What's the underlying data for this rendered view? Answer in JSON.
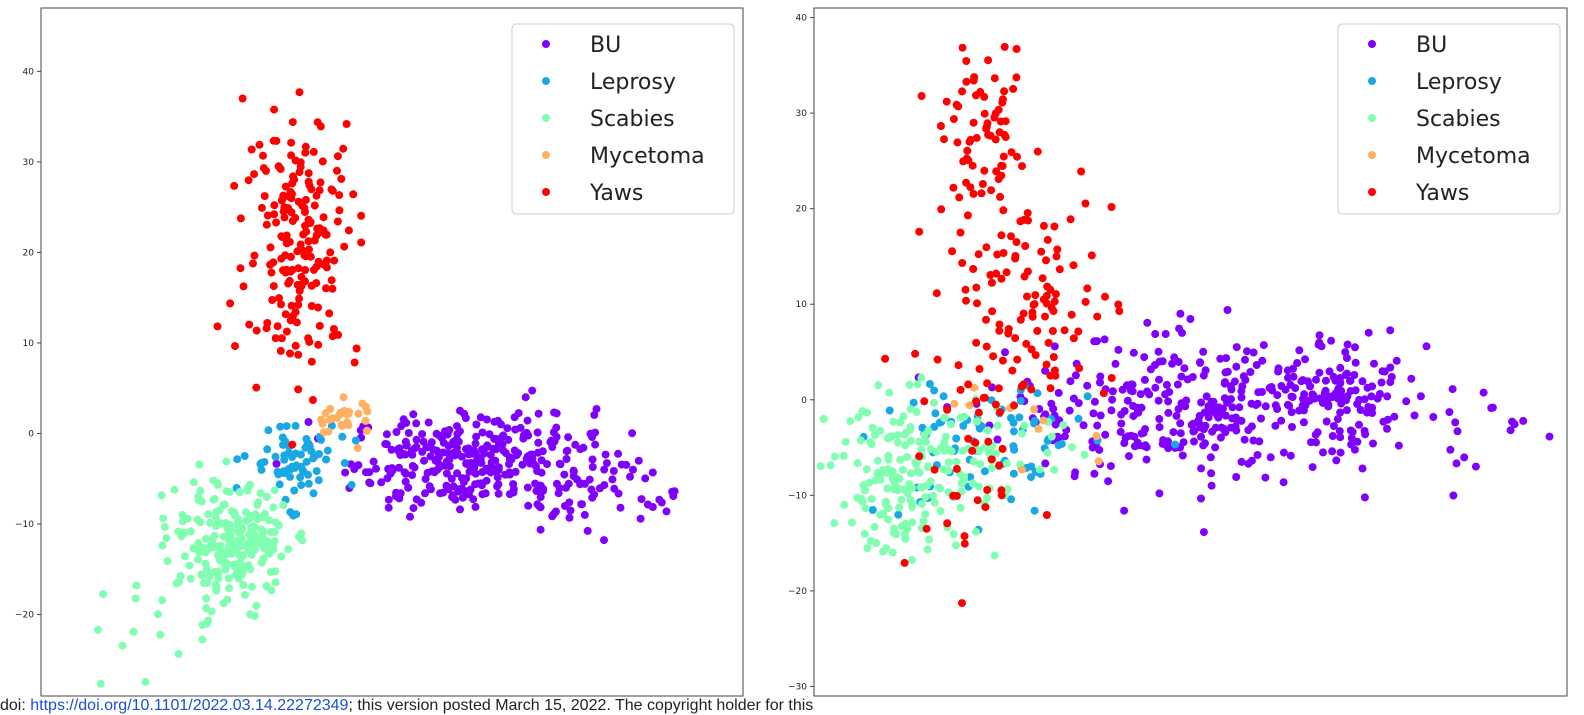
{
  "colors": {
    "BU": "#7f00ff",
    "Leprosy": "#1aa7e6",
    "Scabies": "#80ffb0",
    "Mycetoma": "#ffb060",
    "Yaws": "#ff0000"
  },
  "footer": {
    "prefix": "doi: ",
    "link_text": "https://doi.org/10.1101/2022.03.14.22272349",
    "suffix": "; this version posted March 15, 2022. The copyright holder for this"
  },
  "chart_data": [
    {
      "type": "scatter",
      "title": "",
      "xlabel": "",
      "ylabel": "",
      "grid": false,
      "legend_position": "top-right",
      "xlim": [
        -34,
        36
      ],
      "ylim": [
        -29,
        47
      ],
      "y_ticks": [
        -20,
        -10,
        0,
        10,
        20,
        30,
        40
      ],
      "y_tick_labels": [
        "−20",
        "−10",
        "0",
        "10",
        "20",
        "30",
        "40"
      ],
      "series": [
        {
          "name": "BU",
          "clusters": [
            {
              "center": [
                9,
                -3
              ],
              "spread": [
                6,
                2.6
              ],
              "count": 310
            },
            {
              "center": [
                18,
                -5.5
              ],
              "spread": [
                3,
                3.5
              ],
              "count": 40
            },
            {
              "center": [
                26,
                -6
              ],
              "spread": [
                3,
                2.2
              ],
              "count": 20
            }
          ]
        },
        {
          "name": "Leprosy",
          "clusters": [
            {
              "center": [
                -9,
                -3
              ],
              "spread": [
                2.2,
                2.3
              ],
              "count": 70
            }
          ]
        },
        {
          "name": "Scabies",
          "clusters": [
            {
              "center": [
                -14.5,
                -12
              ],
              "spread": [
                2.5,
                3
              ],
              "count": 200
            },
            {
              "center": [
                -19,
                -16
              ],
              "spread": [
                3,
                3.5
              ],
              "count": 40
            },
            {
              "center": [
                -27,
                -22
              ],
              "spread": [
                2.5,
                3
              ],
              "count": 8
            }
          ]
        },
        {
          "name": "Mycetoma",
          "clusters": [
            {
              "center": [
                -4,
                1.5
              ],
              "spread": [
                1.5,
                1.2
              ],
              "count": 28
            }
          ]
        },
        {
          "name": "Yaws",
          "clusters": [
            {
              "center": [
                -8,
                22
              ],
              "spread": [
                2.8,
                7
              ],
              "count": 190
            },
            {
              "center": [
                -11,
                12
              ],
              "spread": [
                2.5,
                1.5
              ],
              "count": 6
            }
          ]
        }
      ]
    },
    {
      "type": "scatter",
      "title": "",
      "xlabel": "",
      "ylabel": "",
      "grid": false,
      "legend_position": "top-right",
      "xlim": [
        -9,
        48
      ],
      "ylim": [
        -31,
        41
      ],
      "y_ticks": [
        -30,
        -20,
        -10,
        0,
        10,
        20,
        30,
        40
      ],
      "y_tick_labels": [
        "−30",
        "−20",
        "−10",
        "0",
        "10",
        "20",
        "30",
        "40"
      ],
      "series": [
        {
          "name": "BU",
          "clusters": [
            {
              "center": [
                20,
                -1
              ],
              "spread": [
                7,
                3.8
              ],
              "count": 320
            },
            {
              "center": [
                31,
                0
              ],
              "spread": [
                3,
                2.2
              ],
              "count": 100
            },
            {
              "center": [
                42,
                -4
              ],
              "spread": [
                3,
                3
              ],
              "count": 15
            }
          ]
        },
        {
          "name": "Leprosy",
          "clusters": [
            {
              "center": [
                4,
                -5
              ],
              "spread": [
                4,
                3.8
              ],
              "count": 80
            }
          ]
        },
        {
          "name": "Scabies",
          "clusters": [
            {
              "center": [
                -2,
                -8
              ],
              "spread": [
                2.8,
                4
              ],
              "count": 170
            },
            {
              "center": [
                5,
                -4
              ],
              "spread": [
                3,
                3
              ],
              "count": 40
            }
          ]
        },
        {
          "name": "Mycetoma",
          "clusters": [
            {
              "center": [
                6,
                -3
              ],
              "spread": [
                5,
                3
              ],
              "count": 10
            }
          ]
        },
        {
          "name": "Yaws",
          "clusters": [
            {
              "center": [
                4,
                27
              ],
              "spread": [
                1.6,
                4
              ],
              "count": 70
            },
            {
              "center": [
                7,
                10
              ],
              "spread": [
                3.4,
                6
              ],
              "count": 120
            },
            {
              "center": [
                2,
                -7
              ],
              "spread": [
                3,
                5
              ],
              "count": 30
            }
          ]
        }
      ]
    }
  ]
}
